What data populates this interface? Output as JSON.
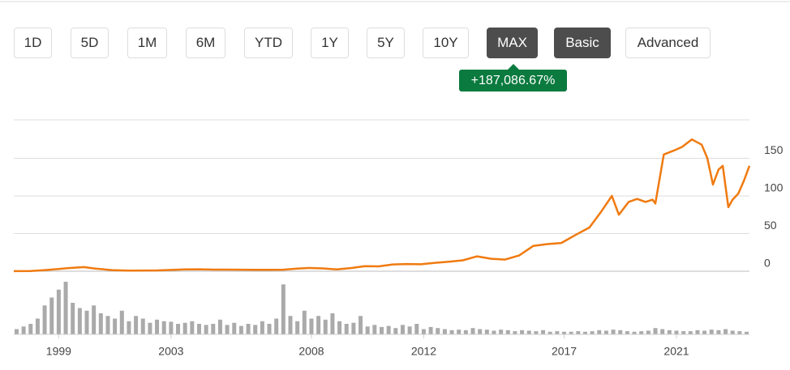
{
  "buttons": [
    {
      "label": "1D",
      "active": false
    },
    {
      "label": "5D",
      "active": false
    },
    {
      "label": "1M",
      "active": false
    },
    {
      "label": "6M",
      "active": false
    },
    {
      "label": "YTD",
      "active": false
    },
    {
      "label": "1Y",
      "active": false
    },
    {
      "label": "5Y",
      "active": false
    },
    {
      "label": "10Y",
      "active": false
    },
    {
      "label": "MAX",
      "active": true
    },
    {
      "label": "Basic",
      "active": true
    },
    {
      "label": "Advanced",
      "active": false
    }
  ],
  "chart_data": {
    "type": "line",
    "annotation": "+187,086.67%",
    "color": "#f07a10",
    "x": [
      1997.4,
      1998.0,
      1998.5,
      1999.0,
      1999.3,
      1999.9,
      2000.3,
      2000.9,
      2001.5,
      2002.0,
      2002.5,
      2003.0,
      2003.5,
      2004.0,
      2004.5,
      2005.0,
      2005.5,
      2006.0,
      2006.5,
      2007.0,
      2007.5,
      2007.9,
      2008.4,
      2008.9,
      2009.4,
      2009.9,
      2010.4,
      2010.9,
      2011.4,
      2011.9,
      2012.4,
      2012.9,
      2013.4,
      2013.9,
      2014.4,
      2014.9,
      2015.4,
      2015.9,
      2016.4,
      2016.9,
      2017.4,
      2017.9,
      2018.3,
      2018.7,
      2018.95,
      2019.3,
      2019.6,
      2019.9,
      2020.15,
      2020.25,
      2020.55,
      2020.9,
      2021.2,
      2021.55,
      2021.9,
      2022.1,
      2022.3,
      2022.5,
      2022.65,
      2022.85,
      2023.0,
      2023.2,
      2023.4,
      2023.6
    ],
    "values": [
      0.1,
      0.3,
      1.5,
      3,
      4,
      5.5,
      3.5,
      1.5,
      0.9,
      1,
      1.1,
      1.7,
      2.4,
      2.6,
      2.2,
      2.2,
      2,
      1.8,
      1.8,
      2,
      3.5,
      4.3,
      3.8,
      2.5,
      4.2,
      6.8,
      6.5,
      9,
      9.6,
      9.2,
      11.2,
      12.7,
      14.5,
      19.8,
      16.5,
      15.5,
      21,
      33.5,
      36,
      37.5,
      48,
      58,
      78,
      100,
      75,
      92,
      96,
      92,
      95,
      90,
      155,
      160,
      165,
      175,
      168,
      150,
      115,
      135,
      140,
      85,
      95,
      103,
      120,
      140
    ],
    "xlim": [
      1997.4,
      2023.6
    ],
    "xticks": [
      1999,
      2003,
      2008,
      2012,
      2017,
      2021
    ],
    "ylim": [
      0,
      201
    ],
    "yticks": [
      0,
      50,
      100,
      150
    ],
    "grid": true,
    "volume": {
      "color": "#aaaaaa",
      "ylim": [
        0,
        100
      ],
      "x": [
        1997.5,
        1997.75,
        1998,
        1998.25,
        1998.5,
        1998.75,
        1999,
        1999.25,
        1999.5,
        1999.75,
        2000,
        2000.25,
        2000.5,
        2000.75,
        2001,
        2001.25,
        2001.5,
        2001.75,
        2002,
        2002.25,
        2002.5,
        2002.75,
        2003,
        2003.25,
        2003.5,
        2003.75,
        2004,
        2004.25,
        2004.5,
        2004.75,
        2005,
        2005.25,
        2005.5,
        2005.75,
        2006,
        2006.25,
        2006.5,
        2006.75,
        2007,
        2007.25,
        2007.5,
        2007.75,
        2008,
        2008.25,
        2008.5,
        2008.75,
        2009,
        2009.25,
        2009.5,
        2009.75,
        2010,
        2010.25,
        2010.5,
        2010.75,
        2011,
        2011.25,
        2011.5,
        2011.75,
        2012,
        2012.25,
        2012.5,
        2012.75,
        2013,
        2013.25,
        2013.5,
        2013.75,
        2014,
        2014.25,
        2014.5,
        2014.75,
        2015,
        2015.25,
        2015.5,
        2015.75,
        2016,
        2016.25,
        2016.5,
        2016.75,
        2017,
        2017.25,
        2017.5,
        2017.75,
        2018,
        2018.25,
        2018.5,
        2018.75,
        2019,
        2019.25,
        2019.5,
        2019.75,
        2020,
        2020.25,
        2020.5,
        2020.75,
        2021,
        2021.25,
        2021.5,
        2021.75,
        2022,
        2022.25,
        2022.5,
        2022.75,
        2023,
        2023.25,
        2023.5
      ],
      "values": [
        10,
        15,
        20,
        30,
        55,
        70,
        85,
        100,
        60,
        50,
        45,
        55,
        40,
        35,
        30,
        45,
        25,
        35,
        30,
        22,
        28,
        25,
        24,
        20,
        22,
        25,
        20,
        18,
        20,
        28,
        18,
        22,
        16,
        20,
        18,
        25,
        20,
        30,
        95,
        35,
        25,
        45,
        30,
        35,
        28,
        40,
        25,
        20,
        22,
        35,
        15,
        18,
        14,
        16,
        12,
        18,
        15,
        20,
        10,
        14,
        12,
        10,
        8,
        9,
        8,
        12,
        10,
        9,
        7,
        9,
        8,
        6,
        8,
        7,
        6,
        8,
        5,
        6,
        5,
        5,
        6,
        5,
        6,
        8,
        7,
        9,
        8,
        6,
        5,
        6,
        7,
        12,
        10,
        8,
        7,
        6,
        6,
        8,
        7,
        9,
        8,
        10,
        7,
        6,
        5
      ]
    }
  }
}
